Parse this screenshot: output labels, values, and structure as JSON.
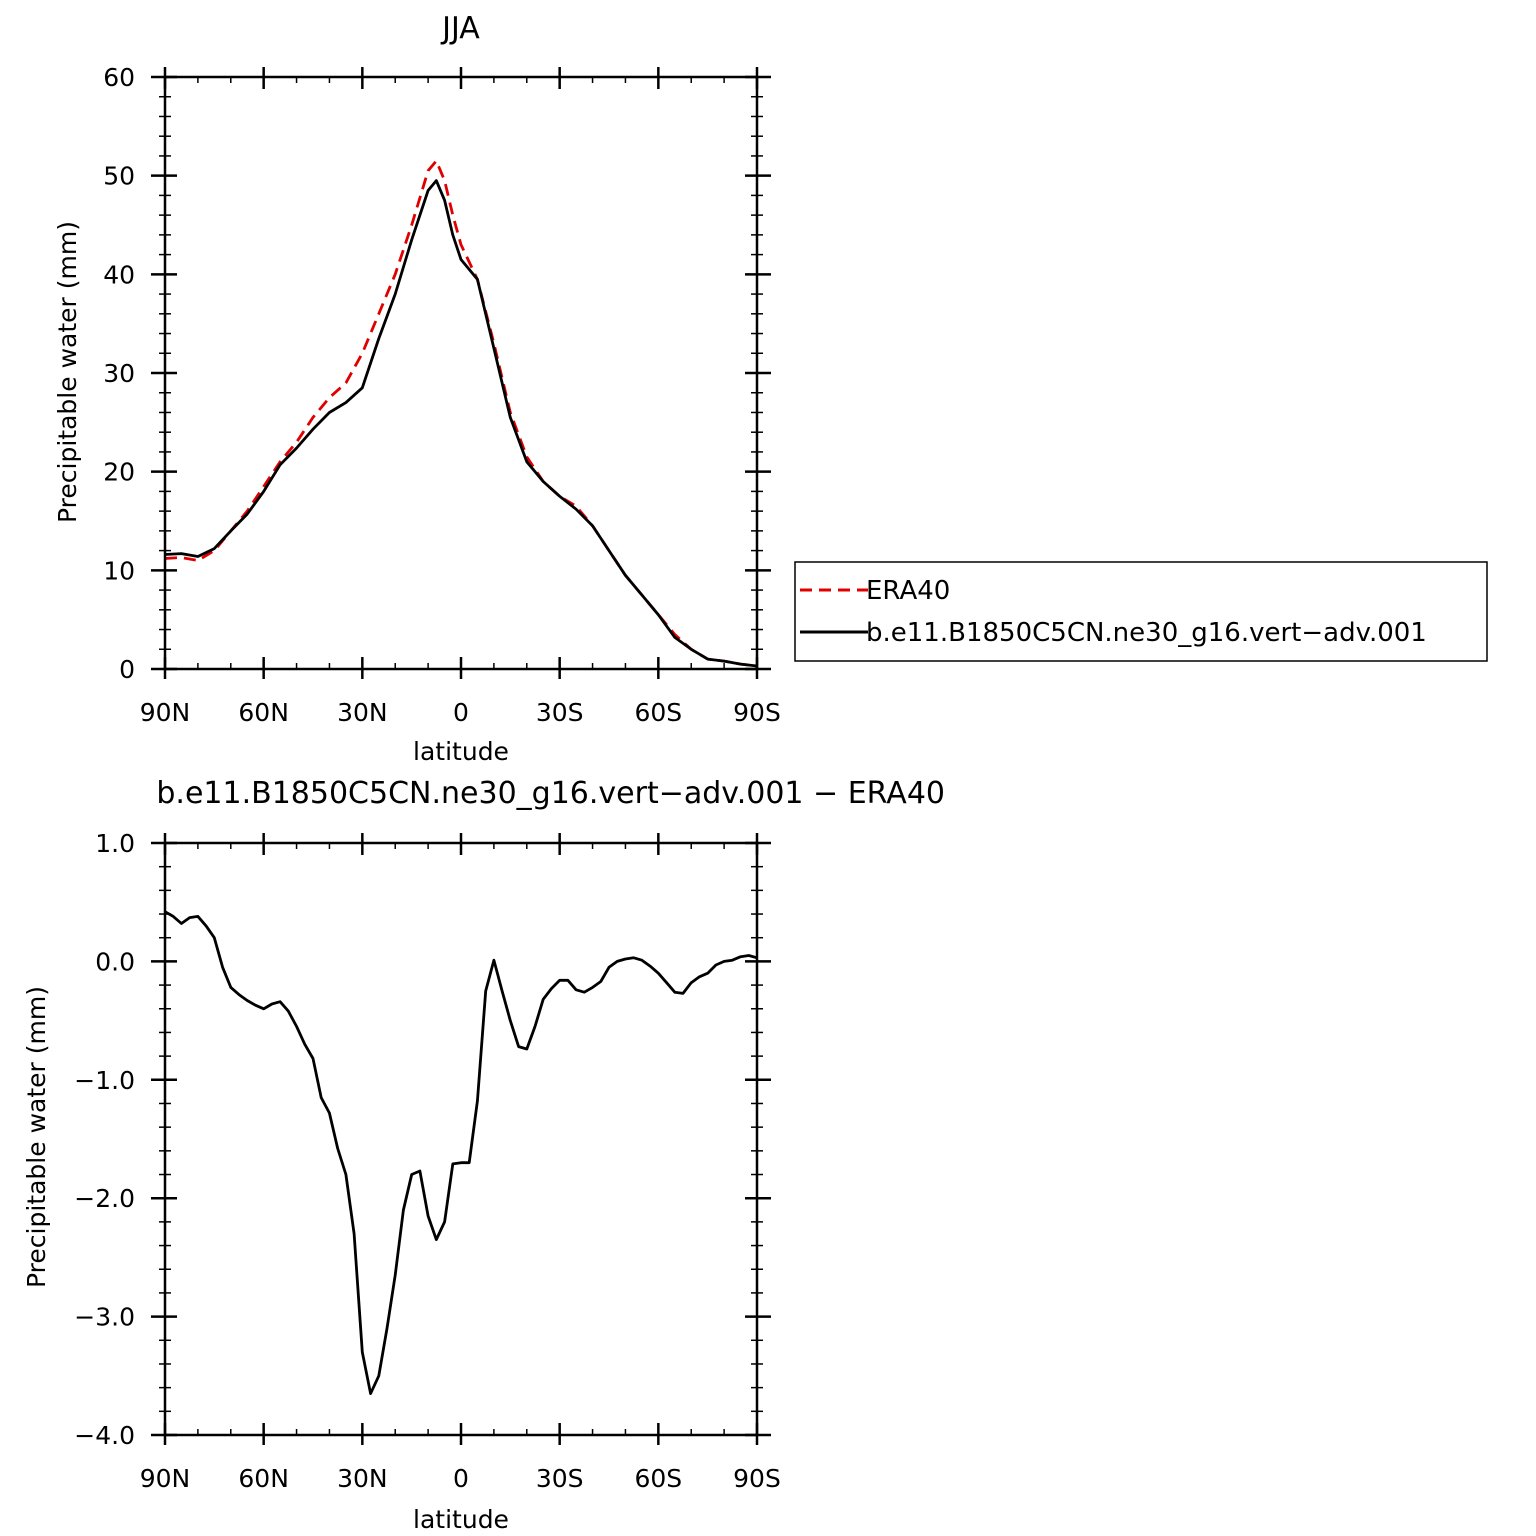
{
  "chart_data": [
    {
      "type": "line",
      "title": "JJA",
      "xlabel": "latitude",
      "ylabel": "Precipitable water (mm)",
      "xlim": [
        90,
        -90
      ],
      "ylim": [
        0,
        60
      ],
      "x_ticks": [
        90,
        60,
        30,
        0,
        -30,
        -60,
        -90
      ],
      "x_tick_labels": [
        "90N",
        "60N",
        "30N",
        "0",
        "30S",
        "60S",
        "90S"
      ],
      "y_ticks": [
        0,
        10,
        20,
        30,
        40,
        50,
        60
      ],
      "y_tick_labels": [
        "0",
        "10",
        "20",
        "30",
        "40",
        "50",
        "60"
      ],
      "grid": false,
      "legend_position": "right",
      "series": [
        {
          "name": "ERA40",
          "color": "#e00000",
          "dash": "dashed",
          "x": [
            90,
            85,
            80,
            75,
            70,
            65,
            60,
            55,
            50,
            45,
            40,
            35,
            30,
            25,
            20,
            15,
            10,
            7.5,
            5,
            2.5,
            0,
            -5,
            -10,
            -15,
            -20,
            -25,
            -30,
            -35,
            -40,
            -45,
            -50,
            -55,
            -60,
            -65,
            -70,
            -75,
            -80,
            -85,
            -90
          ],
          "values": [
            11.2,
            11.3,
            11.0,
            12.0,
            14.0,
            16.0,
            18.5,
            21.0,
            23.0,
            25.5,
            27.5,
            29.0,
            32.0,
            36.0,
            40.0,
            45.0,
            50.5,
            51.5,
            49.5,
            46.0,
            43.0,
            39.5,
            33.0,
            26.0,
            21.5,
            19.0,
            17.5,
            16.5,
            14.5,
            12.0,
            9.5,
            7.5,
            5.5,
            3.5,
            2.0,
            1.0,
            0.8,
            0.5,
            0.3
          ]
        },
        {
          "name": "b.e11.B1850C5CN.ne30_g16.vert−adv.001",
          "color": "#000000",
          "dash": "solid",
          "x": [
            90,
            85,
            80,
            75,
            70,
            65,
            60,
            55,
            50,
            45,
            40,
            35,
            30,
            25,
            20,
            15,
            10,
            7.5,
            5,
            2.5,
            0,
            -5,
            -10,
            -15,
            -20,
            -25,
            -30,
            -35,
            -40,
            -45,
            -50,
            -55,
            -60,
            -65,
            -70,
            -75,
            -80,
            -85,
            -90
          ],
          "values": [
            11.6,
            11.7,
            11.4,
            12.2,
            14.0,
            15.7,
            18.0,
            20.7,
            22.4,
            24.3,
            26.0,
            27.0,
            28.5,
            33.5,
            38.0,
            43.5,
            48.5,
            49.5,
            47.5,
            44.0,
            41.5,
            39.5,
            32.5,
            25.5,
            21.0,
            19.0,
            17.5,
            16.2,
            14.5,
            12.0,
            9.5,
            7.5,
            5.5,
            3.2,
            2.0,
            1.0,
            0.8,
            0.5,
            0.3
          ]
        }
      ]
    },
    {
      "type": "line",
      "title": "b.e11.B1850C5CN.ne30_g16.vert−adv.001  −  ERA40",
      "xlabel": "latitude",
      "ylabel": "Precipitable water (mm)",
      "xlim": [
        90,
        -90
      ],
      "ylim": [
        -4,
        1
      ],
      "x_ticks": [
        90,
        60,
        30,
        0,
        -30,
        -60,
        -90
      ],
      "x_tick_labels": [
        "90N",
        "60N",
        "30N",
        "0",
        "30S",
        "60S",
        "90S"
      ],
      "y_ticks": [
        1,
        0,
        -1,
        -2,
        -3,
        -4
      ],
      "y_tick_labels": [
        "1.0",
        "0.0",
        "−1.0",
        "−2.0",
        "−3.0",
        "−4.0"
      ],
      "grid": false,
      "series": [
        {
          "color": "#000000",
          "dash": "solid",
          "x": [
            90,
            87.5,
            85,
            82.5,
            80,
            77.5,
            75,
            72.5,
            70,
            67.5,
            65,
            62.5,
            60,
            57.5,
            55,
            52.5,
            50,
            47.5,
            45,
            42.5,
            40,
            37.5,
            35,
            32.5,
            30,
            27.5,
            25,
            22.5,
            20,
            17.5,
            15,
            12.5,
            10,
            7.5,
            5,
            2.5,
            0,
            -2.5,
            -5,
            -7.5,
            -10,
            -12.5,
            -15,
            -17.5,
            -20,
            -22.5,
            -25,
            -27.5,
            -30,
            -32.5,
            -35,
            -37.5,
            -40,
            -42.5,
            -45,
            -47.5,
            -50,
            -52.5,
            -55,
            -57.5,
            -60,
            -62.5,
            -65,
            -67.5,
            -70,
            -72.5,
            -75,
            -77.5,
            -80,
            -82.5,
            -85,
            -87.5,
            -90
          ],
          "values": [
            0.42,
            0.38,
            0.32,
            0.37,
            0.38,
            0.3,
            0.2,
            -0.05,
            -0.22,
            -0.28,
            -0.33,
            -0.37,
            -0.4,
            -0.36,
            -0.34,
            -0.42,
            -0.55,
            -0.7,
            -0.82,
            -1.15,
            -1.28,
            -1.58,
            -1.8,
            -2.3,
            -3.3,
            -3.65,
            -3.5,
            -3.1,
            -2.65,
            -2.1,
            -1.8,
            -1.77,
            -2.15,
            -2.35,
            -2.2,
            -1.71,
            -1.7,
            -1.7,
            -1.18,
            -0.25,
            0.01,
            -0.25,
            -0.5,
            -0.72,
            -0.74,
            -0.55,
            -0.32,
            -0.23,
            -0.16,
            -0.16,
            -0.24,
            -0.26,
            -0.22,
            -0.17,
            -0.05,
            0.0,
            0.02,
            0.03,
            0.01,
            -0.04,
            -0.1,
            -0.18,
            -0.26,
            -0.27,
            -0.18,
            -0.13,
            -0.1,
            -0.03,
            0.0,
            0.01,
            0.04,
            0.05,
            0.03
          ]
        }
      ]
    }
  ]
}
